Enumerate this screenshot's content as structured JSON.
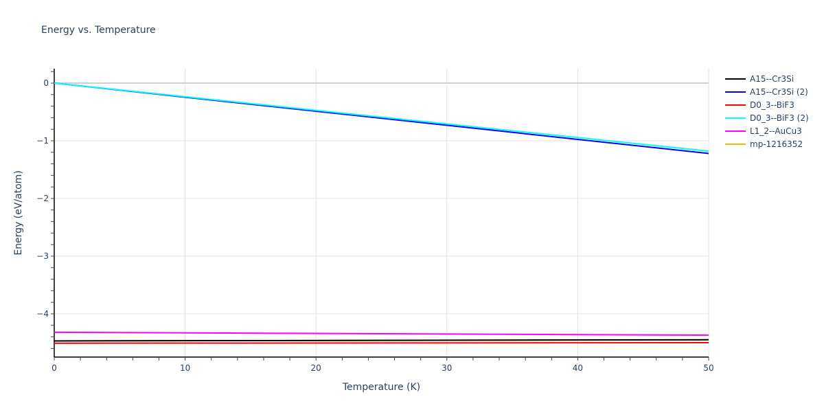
{
  "title": "Energy vs. Temperature",
  "chart_data": {
    "type": "line",
    "title": "Energy vs. Temperature",
    "xlabel": "Temperature (K)",
    "ylabel": "Energy (eV/atom)",
    "xlim": [
      0,
      50
    ],
    "ylim": [
      -4.75,
      0.25
    ],
    "x_ticks": [
      0,
      10,
      20,
      30,
      40,
      50
    ],
    "y_ticks": [
      0,
      -1,
      -2,
      -3,
      -4
    ],
    "y_tick_labels": [
      "0",
      "−1",
      "−2",
      "−3",
      "−4"
    ],
    "grid": true,
    "legend_position": "right",
    "x": [
      0,
      50
    ],
    "series": [
      {
        "name": "A15--Cr3Si",
        "color": "#000000",
        "values": [
          -4.47,
          -4.45
        ]
      },
      {
        "name": "A15--Cr3Si (2)",
        "color": "#0000ff",
        "values": [
          0.0,
          -1.22
        ]
      },
      {
        "name": "D0_3--BiF3",
        "color": "#ff0000",
        "values": [
          -4.51,
          -4.5
        ]
      },
      {
        "name": "D0_3--BiF3 (2)",
        "color": "#00ffff",
        "values": [
          0.0,
          -1.18
        ]
      },
      {
        "name": "L1_2--AuCu3",
        "color": "#ff00ff",
        "values": [
          -4.32,
          -4.37
        ]
      },
      {
        "name": "mp-1216352",
        "color": "#f5b800",
        "values": [
          -4.47,
          -4.45
        ]
      }
    ]
  }
}
